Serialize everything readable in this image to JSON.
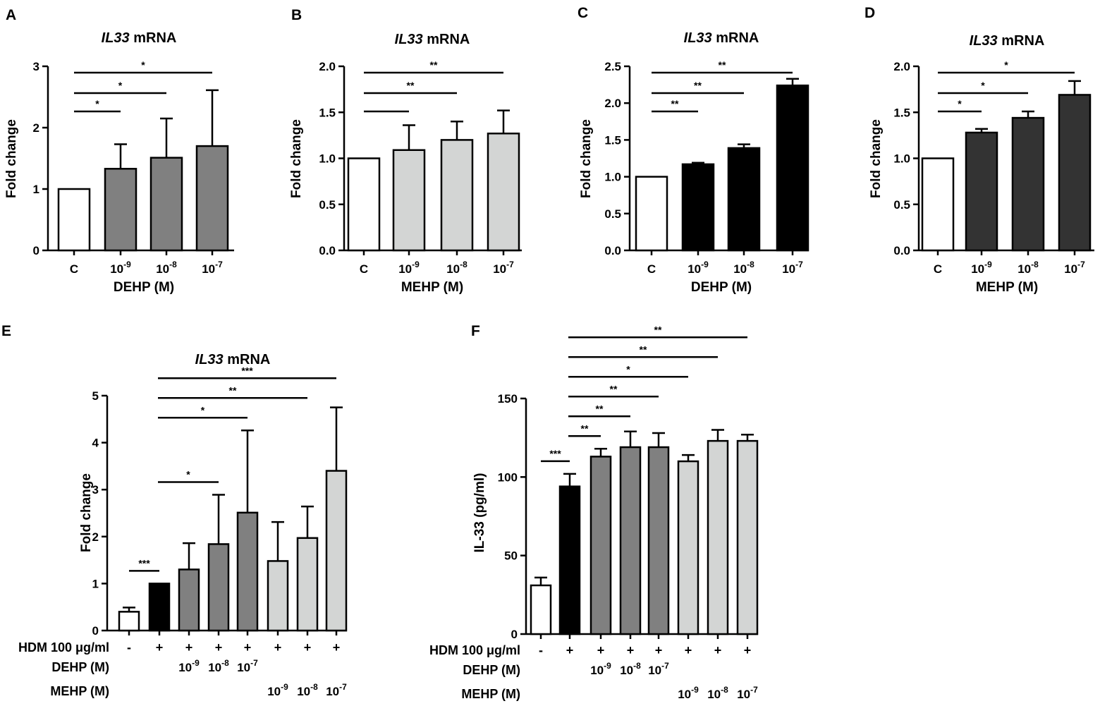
{
  "chart_data": [
    {
      "panel": "A",
      "type": "bar",
      "title_italic": "IL33",
      "title_rest": " mRNA",
      "ylabel": "Fold change",
      "xlabel": "DEHP (M)",
      "categories": [
        "C",
        "10-9",
        "10-8",
        "10-7"
      ],
      "values": [
        1.0,
        1.33,
        1.51,
        1.7
      ],
      "errors": [
        0,
        0.4,
        0.64,
        0.91
      ],
      "fill": [
        "#ffffff",
        "#808080",
        "#808080",
        "#808080"
      ],
      "ylim": [
        0,
        3
      ],
      "yticks": [
        "0",
        "1",
        "2",
        "3"
      ],
      "sig": [
        {
          "from": 0,
          "to": 1,
          "label": "*"
        },
        {
          "from": 0,
          "to": 2,
          "label": "*"
        },
        {
          "from": 0,
          "to": 3,
          "label": "*"
        }
      ]
    },
    {
      "panel": "B",
      "type": "bar",
      "title_italic": "IL33",
      "title_rest": " mRNA",
      "ylabel": "Fold change",
      "xlabel": "MEHP (M)",
      "categories": [
        "C",
        "10-9",
        "10-8",
        "10-7"
      ],
      "values": [
        1.0,
        1.09,
        1.2,
        1.27
      ],
      "errors": [
        0,
        0.27,
        0.2,
        0.25
      ],
      "fill": [
        "#ffffff",
        "#d3d5d4",
        "#d3d5d4",
        "#d3d5d4"
      ],
      "ylim": [
        0,
        2
      ],
      "yticks": [
        "0.0",
        "0.5",
        "1.0",
        "1.5",
        "2.0"
      ],
      "sig": [
        {
          "from": 0,
          "to": 1,
          "label": ""
        },
        {
          "from": 0,
          "to": 2,
          "label": "**"
        },
        {
          "from": 0,
          "to": 3,
          "label": "**"
        }
      ]
    },
    {
      "panel": "C",
      "type": "bar",
      "title_italic": "IL33",
      "title_rest": " mRNA",
      "ylabel": "Fold change",
      "xlabel": "DEHP (M)",
      "categories": [
        "C",
        "10-9",
        "10-8",
        "10-7"
      ],
      "values": [
        1.0,
        1.17,
        1.39,
        2.24
      ],
      "errors": [
        0,
        0.02,
        0.05,
        0.09
      ],
      "fill": [
        "#ffffff",
        "#000000",
        "#000000",
        "#000000"
      ],
      "ylim": [
        0,
        2.5
      ],
      "yticks": [
        "0.0",
        "0.5",
        "1.0",
        "1.5",
        "2.0",
        "2.5"
      ],
      "sig": [
        {
          "from": 0,
          "to": 1,
          "label": "**"
        },
        {
          "from": 0,
          "to": 2,
          "label": "**"
        },
        {
          "from": 0,
          "to": 3,
          "label": "**"
        }
      ]
    },
    {
      "panel": "D",
      "type": "bar",
      "title_italic": "IL33",
      "title_rest": " mRNA",
      "ylabel": "Fold change",
      "xlabel": "MEHP (M)",
      "categories": [
        "C",
        "10-9",
        "10-8",
        "10-7"
      ],
      "values": [
        1.0,
        1.28,
        1.44,
        1.69
      ],
      "errors": [
        0,
        0.04,
        0.07,
        0.15
      ],
      "fill": [
        "#ffffff",
        "#333333",
        "#333333",
        "#333333"
      ],
      "ylim": [
        0,
        2
      ],
      "yticks": [
        "0.0",
        "0.5",
        "1.0",
        "1.5",
        "2.0"
      ],
      "sig": [
        {
          "from": 0,
          "to": 1,
          "label": "*"
        },
        {
          "from": 0,
          "to": 2,
          "label": "*"
        },
        {
          "from": 0,
          "to": 3,
          "label": "*"
        }
      ]
    },
    {
      "panel": "E",
      "type": "bar",
      "title_italic": "IL33",
      "title_rest": " mRNA",
      "ylabel": "Fold change",
      "values": [
        0.4,
        1.0,
        1.3,
        1.84,
        2.51,
        1.48,
        1.97,
        3.4
      ],
      "errors": [
        0.09,
        0,
        0.56,
        1.05,
        1.75,
        0.83,
        0.67,
        1.35
      ],
      "fill": [
        "#ffffff",
        "#000000",
        "#808080",
        "#808080",
        "#808080",
        "#d3d5d4",
        "#d3d5d4",
        "#d3d5d4"
      ],
      "ylim": [
        0,
        5
      ],
      "yticks": [
        "0",
        "1",
        "2",
        "3",
        "4",
        "5"
      ],
      "sig": [
        {
          "from": 0,
          "to": 1,
          "label": "***"
        },
        {
          "from": 1,
          "to": 3,
          "label": "*"
        },
        {
          "from": 1,
          "to": 4,
          "label": "*"
        },
        {
          "from": 1,
          "to": 6,
          "label": "**"
        },
        {
          "from": 1,
          "to": 7,
          "label": "***"
        }
      ],
      "rows": [
        {
          "label": "HDM 100 μg/ml",
          "marks": [
            "-",
            "+",
            "+",
            "+",
            "+",
            "+",
            "+",
            "+"
          ]
        },
        {
          "label": "DEHP (M)",
          "marks": [
            "",
            "",
            "10-9",
            "10-8",
            "10-7",
            "",
            "",
            ""
          ]
        },
        {
          "label": "MEHP (M)",
          "marks": [
            "",
            "",
            "",
            "",
            "",
            "10-9",
            "10-8",
            "10-7"
          ]
        }
      ]
    },
    {
      "panel": "F",
      "type": "bar",
      "title_italic": "",
      "title_rest": "",
      "ylabel": "IL-33 (pg/ml)",
      "values": [
        31,
        94,
        113,
        119,
        119,
        110,
        123,
        123
      ],
      "errors": [
        5,
        8,
        5,
        10,
        9,
        4,
        7,
        4
      ],
      "fill": [
        "#ffffff",
        "#000000",
        "#808080",
        "#808080",
        "#808080",
        "#d3d5d4",
        "#d3d5d4",
        "#d3d5d4"
      ],
      "ylim": [
        0,
        150
      ],
      "yticks": [
        "0",
        "50",
        "100",
        "150"
      ],
      "sig": [
        {
          "from": 0,
          "to": 1,
          "label": "***"
        },
        {
          "from": 1,
          "to": 2,
          "label": "**"
        },
        {
          "from": 1,
          "to": 3,
          "label": "**"
        },
        {
          "from": 1,
          "to": 4,
          "label": "**"
        },
        {
          "from": 1,
          "to": 5,
          "label": "*"
        },
        {
          "from": 1,
          "to": 6,
          "label": "**"
        },
        {
          "from": 1,
          "to": 7,
          "label": "**"
        }
      ],
      "rows": [
        {
          "label": "HDM 100 μg/ml",
          "marks": [
            "-",
            "+",
            "+",
            "+",
            "+",
            "+",
            "+",
            "+"
          ]
        },
        {
          "label": "DEHP (M)",
          "marks": [
            "",
            "",
            "10-9",
            "10-8",
            "10-7",
            "",
            "",
            ""
          ]
        },
        {
          "label": "MEHP (M)",
          "marks": [
            "",
            "",
            "",
            "",
            "",
            "10-9",
            "10-8",
            "10-7"
          ]
        }
      ]
    }
  ]
}
